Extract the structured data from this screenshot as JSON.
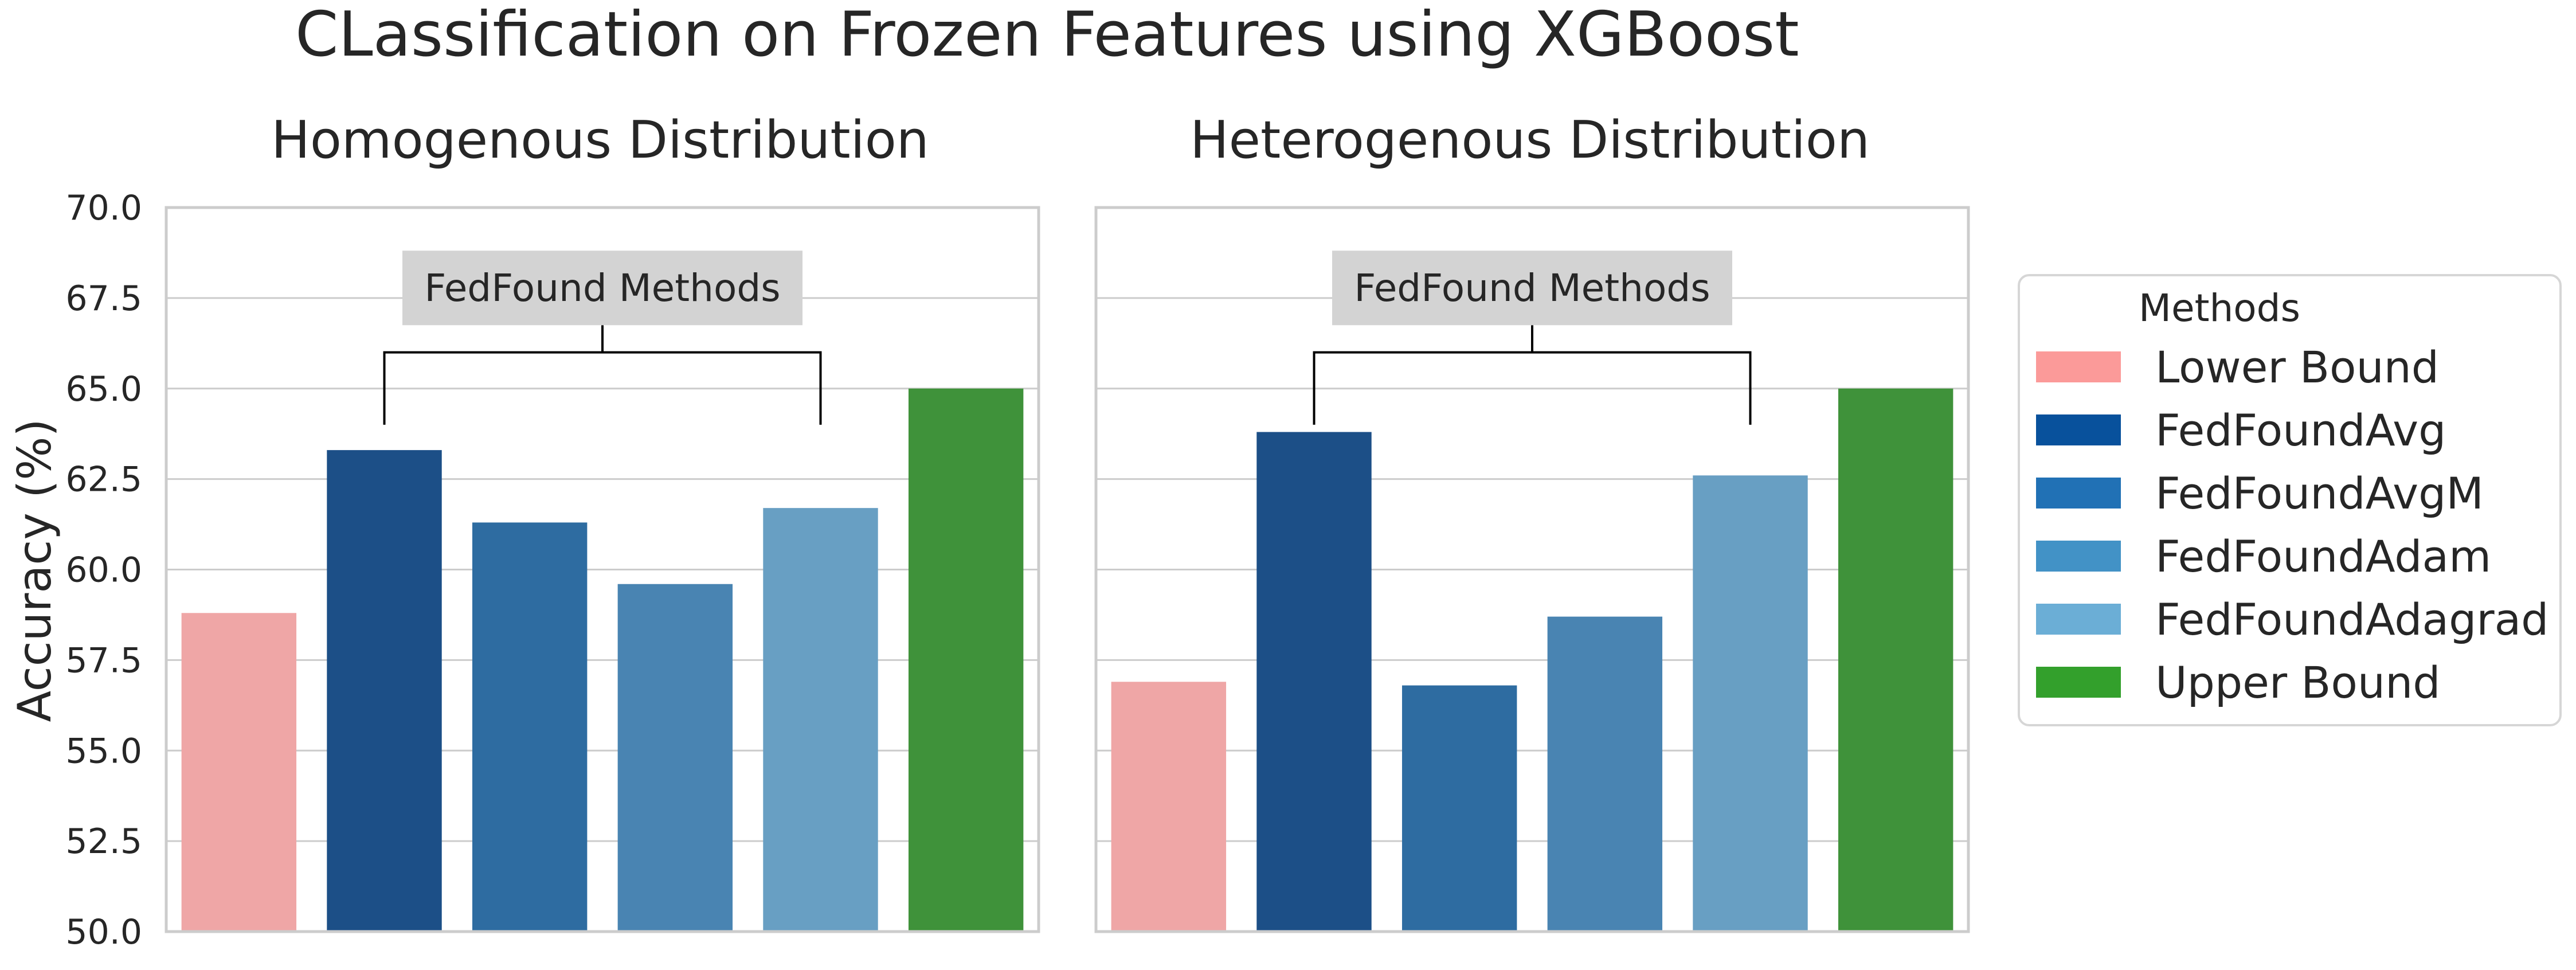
{
  "chart_data": {
    "type": "bar",
    "title": "CLassification on Frozen Features using XGBoost",
    "ylabel": "Accuracy (%)",
    "ylim": [
      50,
      70
    ],
    "yticks": [
      "50.0",
      "52.5",
      "55.0",
      "57.5",
      "60.0",
      "62.5",
      "65.0",
      "67.5",
      "70.0"
    ],
    "grid": "on",
    "legend_position": "right",
    "legend": {
      "title": "Methods",
      "entries": [
        {
          "label": "Lower Bound",
          "color": "#fb9a99"
        },
        {
          "label": "FedFoundAvg",
          "color": "#08519c"
        },
        {
          "label": "FedFoundAvgM",
          "color": "#2171b5"
        },
        {
          "label": "FedFoundAdam",
          "color": "#4292c6"
        },
        {
          "label": "FedFoundAdagrad",
          "color": "#6baed6"
        },
        {
          "label": "Upper Bound",
          "color": "#33a02c"
        }
      ]
    },
    "bar_colors": [
      "#efa6a6",
      "#1c4f87",
      "#2e6ca1",
      "#4984b2",
      "#689fc3",
      "#3f923a"
    ],
    "categories": [
      "Lower Bound",
      "FedFoundAvg",
      "FedFoundAvgM",
      "FedFoundAdam",
      "FedFoundAdagrad",
      "Upper Bound"
    ],
    "panels": [
      {
        "title": "Homogenous Distribution",
        "values": [
          58.8,
          63.3,
          61.3,
          59.6,
          61.7,
          65.0
        ],
        "annotation": "FedFound Methods"
      },
      {
        "title": "Heterogenous Distribution",
        "values": [
          56.9,
          63.8,
          56.8,
          58.7,
          62.6,
          65.0
        ],
        "annotation": "FedFound Methods"
      }
    ]
  }
}
